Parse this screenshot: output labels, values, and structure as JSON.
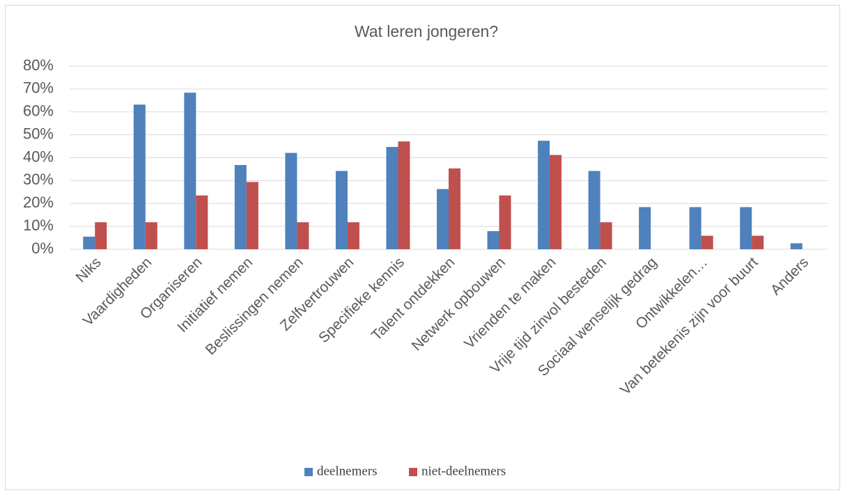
{
  "chart_data": {
    "type": "bar",
    "title": "Wat leren jongeren?",
    "categories": [
      "Niks",
      "Vaardigheden",
      "Organiseren",
      "Initiatief nemen",
      "Beslissingen nemen",
      "Zelfvertrouwen",
      "Specifieke kennis",
      "Talent ontdekken",
      "Netwerk opbouwen",
      "Vrienden te maken",
      "Vrije tijd zinvol besteden",
      "Sociaal wenselijk gedrag",
      "Ontwikkelen…",
      "Van betekenis zijn voor buurt",
      "Anders"
    ],
    "series": [
      {
        "name": "deelnemers",
        "color": "#4f81bd",
        "values": [
          5.5,
          63.2,
          68.4,
          36.8,
          42.1,
          34.2,
          44.7,
          26.3,
          7.9,
          47.4,
          34.2,
          18.4,
          18.4,
          18.4,
          2.6
        ]
      },
      {
        "name": "niet-deelnemers",
        "color": "#c0504d",
        "values": [
          11.8,
          11.8,
          23.5,
          29.4,
          11.8,
          11.8,
          47.1,
          35.3,
          23.5,
          41.2,
          11.8,
          0,
          5.9,
          5.9,
          0
        ]
      }
    ],
    "ylim": [
      0,
      80
    ],
    "yticks": [
      {
        "value": 0,
        "label": "0%"
      },
      {
        "value": 10,
        "label": "10%"
      },
      {
        "value": 20,
        "label": "20%"
      },
      {
        "value": 30,
        "label": "30%"
      },
      {
        "value": 40,
        "label": "40%"
      },
      {
        "value": 50,
        "label": "50%"
      },
      {
        "value": 60,
        "label": "60%"
      },
      {
        "value": 70,
        "label": "70%"
      },
      {
        "value": 80,
        "label": "80%"
      }
    ],
    "grid": true,
    "legend": "bottom"
  }
}
